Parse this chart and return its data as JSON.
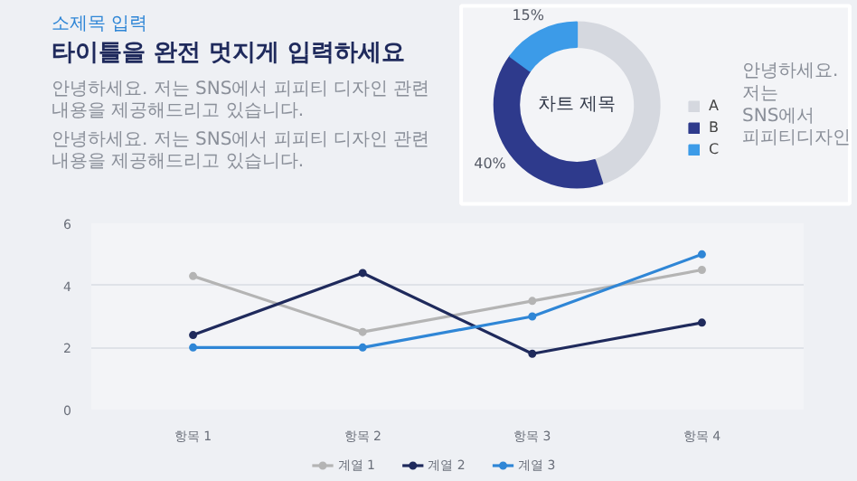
{
  "chart_data": [
    {
      "type": "other",
      "subtitle": "소제목 입력",
      "title": "타이틀을 완전 멋지게 입력하세요",
      "annotations": [
        "안녕하세요. 저는 SNS에서 피피티 디자인 관련 내용을 제공해드리고 있습니다.",
        "안녕하세요. 저는 SNS에서 피피티 디자인 관련 내용을 제공해드리고 있습니다."
      ]
    },
    {
      "type": "donut",
      "title": "차트 제목",
      "categories": [
        "A",
        "B",
        "C"
      ],
      "values": [
        45,
        40,
        15
      ],
      "colors": [
        "#d5d8df",
        "#2e3a8c",
        "#3c9be8"
      ],
      "value_labels": [
        null,
        "40%",
        "15%"
      ],
      "legend": "right",
      "annotations": [
        "안녕하세요. 저는 SNS에서 피피티디자인"
      ]
    },
    {
      "type": "line",
      "categories": [
        "항목 1",
        "항목 2",
        "항목 3",
        "항목 4"
      ],
      "ylim": [
        0,
        6
      ],
      "yticks": [
        0,
        2,
        4,
        6
      ],
      "grid": "y",
      "legend": "bottom",
      "marker": "circle",
      "series": [
        {
          "name": "계열 1",
          "color": "#b4b4b4",
          "values": [
            4.3,
            2.5,
            3.5,
            4.5
          ]
        },
        {
          "name": "계열 2",
          "color": "#1f2a5c",
          "values": [
            2.4,
            4.4,
            1.8,
            2.8
          ]
        },
        {
          "name": "계열 3",
          "color": "#2f86d6",
          "values": [
            2.0,
            2.0,
            3.0,
            5.0
          ]
        }
      ]
    }
  ]
}
